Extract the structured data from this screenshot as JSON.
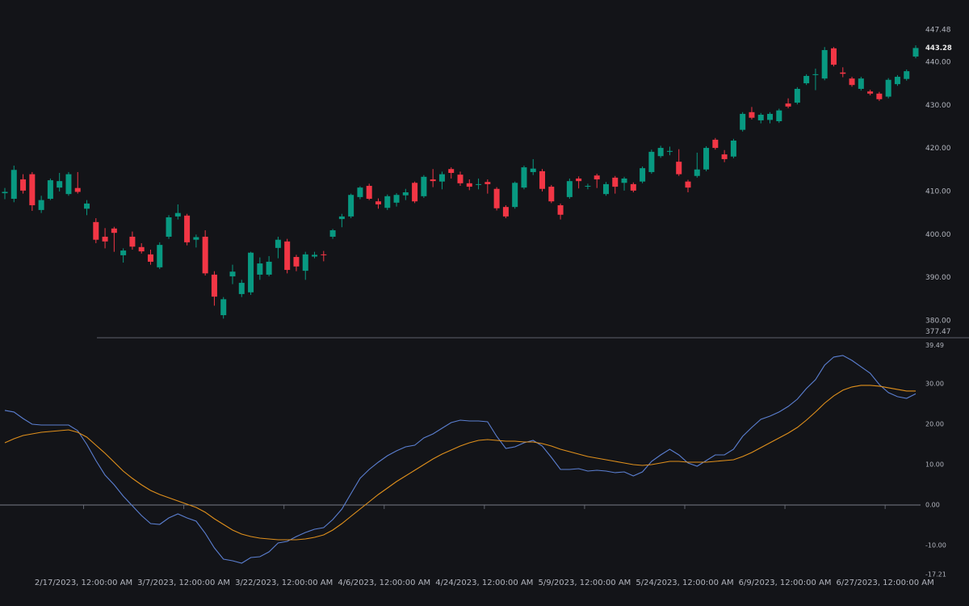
{
  "chart_data": [
    {
      "type": "candlestick",
      "categories": [
        null,
        null,
        null,
        null,
        null,
        null,
        null,
        null,
        null,
        "2/17/2023, 12:00:00 AM",
        null,
        null,
        null,
        null,
        null,
        null,
        null,
        null,
        null,
        null,
        "3/7/2023, 12:00:00 AM",
        null,
        null,
        null,
        null,
        null,
        null,
        null,
        null,
        null,
        null,
        "3/22/2023, 12:00:00 AM",
        null,
        null,
        null,
        null,
        null,
        null,
        null,
        null,
        null,
        null,
        "4/6/2023, 12:00:00 AM",
        null,
        null,
        null,
        null,
        null,
        null,
        null,
        null,
        null,
        null,
        "4/24/2023, 12:00:00 AM",
        null,
        null,
        null,
        null,
        null,
        null,
        null,
        null,
        null,
        null,
        "5/9/2023, 12:00:00 AM",
        null,
        null,
        null,
        null,
        null,
        null,
        null,
        null,
        null,
        null,
        "5/24/2023, 12:00:00 AM",
        null,
        null,
        null,
        null,
        null,
        null,
        null,
        null,
        null,
        null,
        "6/9/2023, 12:00:00 AM",
        null,
        null,
        null,
        null,
        null,
        null,
        null,
        null,
        null,
        null,
        "6/27/2023, 12:00:00 AM",
        null,
        null,
        null
      ],
      "open": [
        409.6,
        408.3,
        412.8,
        414,
        405.7,
        408.3,
        410.9,
        409.4,
        410.8,
        406,
        402.9,
        399.5,
        401.4,
        395.2,
        399.5,
        397.1,
        395.4,
        392.4,
        399.5,
        404.2,
        404.4,
        398.8,
        399.5,
        390.7,
        381.3,
        390.3,
        386.2,
        386.6,
        390.7,
        390.7,
        396.9,
        398.4,
        394.8,
        391.6,
        394.9,
        395.4,
        399.5,
        403.6,
        404.2,
        408.7,
        411.3,
        407.7,
        406.2,
        407.4,
        409.1,
        412,
        408.9,
        412.8,
        412.3,
        415.2,
        413.9,
        411.9,
        411.6,
        412.2,
        410.6,
        406.4,
        406.4,
        410.9,
        414.5,
        414.7,
        411.1,
        406.8,
        408.7,
        413,
        411.2,
        413.7,
        409.4,
        413.2,
        412,
        411.7,
        412.3,
        414.5,
        418.2,
        419.2,
        416.9,
        412.3,
        413.6,
        415.1,
        422,
        418.6,
        418.1,
        424.3,
        428.4,
        426.5,
        426.6,
        426.3,
        430.4,
        430.6,
        435.1,
        437,
        436.2,
        443.2,
        437.6,
        436.2,
        433.8,
        433.2,
        432.7,
        432,
        434.9,
        436.1,
        441.3
      ],
      "high": [
        410.8,
        416,
        414,
        414.5,
        409,
        413,
        414.3,
        414.5,
        414.5,
        408,
        403.8,
        401.5,
        401.8,
        396.8,
        400.7,
        398,
        396.5,
        398.2,
        404.5,
        407,
        404.8,
        400,
        401,
        391.5,
        385.5,
        393,
        389.5,
        396,
        394.7,
        395,
        399.5,
        399,
        395.3,
        396,
        396,
        396.2,
        401.3,
        404.8,
        409.5,
        411.2,
        411.8,
        408.4,
        409.3,
        409.6,
        410.6,
        412.3,
        413.8,
        415.2,
        414.6,
        415.6,
        414.6,
        412.8,
        413,
        412.8,
        411,
        406.8,
        412.3,
        416,
        417.5,
        415.2,
        411.5,
        407.2,
        413,
        413.5,
        411.8,
        414.1,
        412.2,
        413.6,
        413.4,
        412.1,
        415.8,
        419.7,
        420.6,
        420.4,
        419.8,
        412.7,
        419,
        420.5,
        422.4,
        419.6,
        422.2,
        428.4,
        429.6,
        428.2,
        428.4,
        429.2,
        431.6,
        434.2,
        437.2,
        438.5,
        443.5,
        443.5,
        438.8,
        436.6,
        436.6,
        433.6,
        433.1,
        436.3,
        437,
        438.3,
        443.9
      ],
      "low": [
        408.2,
        407.5,
        409.5,
        405.5,
        405,
        408,
        410,
        409,
        409.5,
        404.5,
        398,
        396.8,
        396,
        393.5,
        396.5,
        395.6,
        393,
        392,
        399,
        403.5,
        397.5,
        397,
        390.5,
        383.5,
        380.5,
        388.5,
        385.5,
        386,
        389.5,
        390.3,
        394.5,
        391,
        391.5,
        389.5,
        394.5,
        393.8,
        399,
        401.7,
        403.8,
        408.2,
        408,
        406,
        405.7,
        406.5,
        408,
        407.3,
        408.5,
        411,
        410.5,
        413,
        411.3,
        410.3,
        410.5,
        409.5,
        405.6,
        403.8,
        406,
        410.5,
        413.8,
        410,
        407.3,
        403.5,
        408.3,
        410.7,
        410.5,
        410.8,
        409,
        409.5,
        410.2,
        409.8,
        411.9,
        414.1,
        417.8,
        418.4,
        413.6,
        409.8,
        413.2,
        414.7,
        419.7,
        416.8,
        417.7,
        423.9,
        426.7,
        425.8,
        425.8,
        425.9,
        429.3,
        430.2,
        434.7,
        433.5,
        435.8,
        439,
        436.5,
        434.3,
        433.4,
        432.3,
        431,
        431.6,
        434.5,
        435.7,
        440.9
      ],
      "close": [
        409.9,
        415,
        410.2,
        406.8,
        408,
        412.6,
        412.4,
        414,
        409.9,
        407.2,
        398.8,
        398.4,
        400.4,
        396.3,
        397.2,
        396.1,
        393.7,
        397.6,
        404,
        405,
        398.2,
        399.4,
        391,
        385.6,
        385,
        391.4,
        388.8,
        395.8,
        393.3,
        393.7,
        398.8,
        391.8,
        392.6,
        395.4,
        395.3,
        395.2,
        401,
        404.2,
        409.2,
        410.9,
        408.3,
        407,
        408.9,
        409.2,
        409.8,
        407.7,
        413.4,
        412.4,
        414,
        414.3,
        411.9,
        411.1,
        411.7,
        411.7,
        406.1,
        404.2,
        412,
        415.6,
        415.3,
        410.6,
        407.7,
        404.6,
        412.4,
        412.4,
        411.3,
        412.8,
        411.7,
        411.1,
        413,
        410.2,
        415.4,
        419.2,
        420.1,
        419.4,
        414,
        410.9,
        415.1,
        420.1,
        420.1,
        417.5,
        421.8,
        428,
        427.1,
        427.8,
        428,
        428.8,
        429.7,
        433.8,
        436.8,
        437.2,
        442.8,
        439.4,
        437.3,
        434.7,
        436.2,
        432.7,
        431.4,
        435.9,
        436.6,
        437.9,
        443.28
      ],
      "up_color": "#089981",
      "down_color": "#f23645",
      "ylim": [
        377.47,
        447.48
      ],
      "yticks": [
        {
          "value": 380,
          "label": "380.00"
        },
        {
          "value": 390,
          "label": "390.00"
        },
        {
          "value": 400,
          "label": "400.00"
        },
        {
          "value": 410,
          "label": "410.00"
        },
        {
          "value": 420,
          "label": "420.00"
        },
        {
          "value": 430,
          "label": "430.00"
        },
        {
          "value": 440,
          "label": "440.00"
        }
      ]
    },
    {
      "type": "line",
      "series": [
        {
          "color": "#5b7fd1",
          "values": [
            23.4,
            23,
            21.4,
            20,
            19.8,
            19.8,
            19.8,
            19.8,
            18.4,
            15,
            11,
            7.4,
            5,
            2.2,
            -0.2,
            -2.6,
            -4.6,
            -4.8,
            -3.2,
            -2.2,
            -3.2,
            -4,
            -7,
            -10.6,
            -13.4,
            -13.8,
            -14.4,
            -13,
            -12.8,
            -11.6,
            -9.4,
            -9,
            -7.8,
            -6.8,
            -6,
            -5.6,
            -3.6,
            -1,
            2.8,
            6.6,
            8.8,
            10.6,
            12.2,
            13.4,
            14.4,
            14.8,
            16.6,
            17.6,
            19,
            20.4,
            21,
            20.8,
            20.8,
            20.6,
            17,
            14,
            14.4,
            15.4,
            16,
            14.6,
            11.8,
            8.8,
            8.8,
            9,
            8.4,
            8.6,
            8.4,
            8,
            8.2,
            7.2,
            8.2,
            10.8,
            12.4,
            13.8,
            12.4,
            10.4,
            9.6,
            11,
            12.4,
            12.4,
            13.8,
            17,
            19.2,
            21.2,
            22,
            23,
            24.4,
            26.2,
            28.8,
            31,
            34.6,
            36.6,
            37,
            35.8,
            34.2,
            32.6,
            29.8,
            27.8,
            26.8,
            26.4,
            27.5
          ]
        },
        {
          "color": "#e0901c",
          "values": [
            15.4,
            16.4,
            17.2,
            17.6,
            18,
            18.2,
            18.4,
            18.6,
            18,
            16.8,
            14.8,
            12.8,
            10.6,
            8.4,
            6.6,
            5,
            3.6,
            2.6,
            1.8,
            1,
            0.2,
            -0.6,
            -1.8,
            -3.4,
            -4.8,
            -6.2,
            -7.2,
            -7.8,
            -8.2,
            -8.4,
            -8.6,
            -8.6,
            -8.6,
            -8.4,
            -8,
            -7.4,
            -6.2,
            -4.6,
            -2.8,
            -1,
            0.8,
            2.6,
            4.2,
            5.8,
            7.2,
            8.6,
            10,
            11.4,
            12.6,
            13.6,
            14.6,
            15.4,
            16,
            16.2,
            16,
            15.8,
            15.8,
            15.6,
            15.6,
            15.2,
            14.6,
            13.8,
            13.2,
            12.6,
            12,
            11.6,
            11.2,
            10.8,
            10.4,
            10,
            9.8,
            10,
            10.4,
            10.8,
            10.8,
            10.6,
            10.6,
            10.6,
            10.8,
            11,
            11.2,
            12,
            13,
            14.2,
            15.4,
            16.6,
            17.8,
            19.2,
            21,
            23,
            25.2,
            27,
            28.4,
            29.2,
            29.6,
            29.6,
            29.4,
            29,
            28.6,
            28.2,
            28.2
          ]
        }
      ],
      "ylim": [
        -17.21,
        39.49
      ],
      "yticks": [
        {
          "value": -10,
          "label": "-10.00"
        },
        {
          "value": 0,
          "label": "0.00"
        },
        {
          "value": 10,
          "label": "10.00"
        },
        {
          "value": 20,
          "label": "20.00"
        },
        {
          "value": 30,
          "label": "30.00"
        }
      ]
    }
  ]
}
